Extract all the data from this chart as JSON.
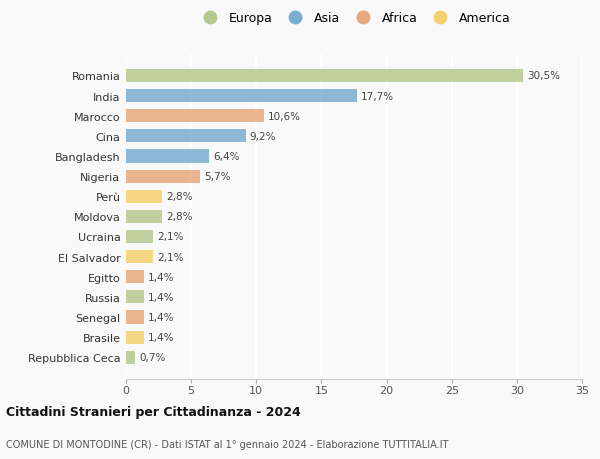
{
  "countries": [
    "Romania",
    "India",
    "Marocco",
    "Cina",
    "Bangladesh",
    "Nigeria",
    "Perù",
    "Moldova",
    "Ucraina",
    "El Salvador",
    "Egitto",
    "Russia",
    "Senegal",
    "Brasile",
    "Repubblica Ceca"
  ],
  "values": [
    30.5,
    17.7,
    10.6,
    9.2,
    6.4,
    5.7,
    2.8,
    2.8,
    2.1,
    2.1,
    1.4,
    1.4,
    1.4,
    1.4,
    0.7
  ],
  "labels": [
    "30,5%",
    "17,7%",
    "10,6%",
    "9,2%",
    "6,4%",
    "5,7%",
    "2,8%",
    "2,8%",
    "2,1%",
    "2,1%",
    "1,4%",
    "1,4%",
    "1,4%",
    "1,4%",
    "0,7%"
  ],
  "continents": [
    "Europa",
    "Asia",
    "Africa",
    "Asia",
    "Asia",
    "Africa",
    "America",
    "Europa",
    "Europa",
    "America",
    "Africa",
    "Europa",
    "Africa",
    "America",
    "Europa"
  ],
  "colors": {
    "Europa": "#b5c98e",
    "Asia": "#7aadcf",
    "Africa": "#e8a87c",
    "America": "#f5d06e"
  },
  "legend_order": [
    "Europa",
    "Asia",
    "Africa",
    "America"
  ],
  "xlim": [
    0,
    35
  ],
  "xticks": [
    0,
    5,
    10,
    15,
    20,
    25,
    30,
    35
  ],
  "title": "Cittadini Stranieri per Cittadinanza - 2024",
  "subtitle": "COMUNE DI MONTODINE (CR) - Dati ISTAT al 1° gennaio 2024 - Elaborazione TUTTITALIA.IT",
  "bg_color": "#f9f9f9",
  "grid_color": "#ffffff",
  "bar_height": 0.65
}
